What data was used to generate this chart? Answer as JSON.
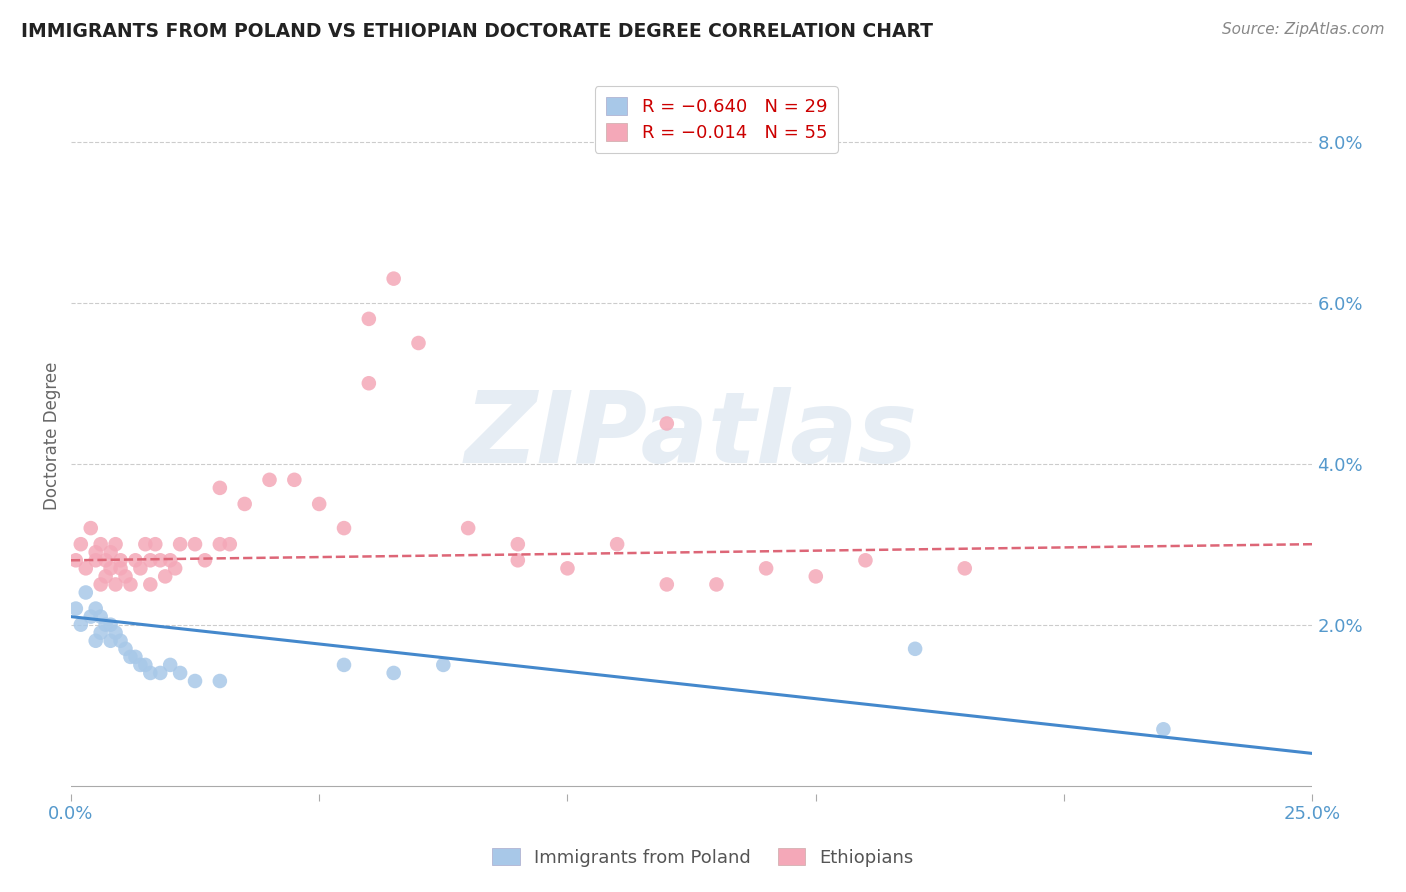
{
  "title": "IMMIGRANTS FROM POLAND VS ETHIOPIAN DOCTORATE DEGREE CORRELATION CHART",
  "source": "Source: ZipAtlas.com",
  "ylabel": "Doctorate Degree",
  "xlim": [
    0.0,
    0.25
  ],
  "ylim": [
    -0.001,
    0.088
  ],
  "xticks": [
    0.0,
    0.05,
    0.1,
    0.15,
    0.2,
    0.25
  ],
  "xtick_labels": [
    "0.0%",
    "",
    "",
    "",
    "",
    "25.0%"
  ],
  "yticks_right": [
    0.02,
    0.04,
    0.06,
    0.08
  ],
  "ytick_right_labels": [
    "2.0%",
    "4.0%",
    "6.0%",
    "8.0%"
  ],
  "legend_r_entries": [
    {
      "label": "R = −0.640   N = 29",
      "color": "#a8c8e8"
    },
    {
      "label": "R = −0.014   N = 55",
      "color": "#f4a8b8"
    }
  ],
  "legend_series": [
    "Immigrants from Poland",
    "Ethiopians"
  ],
  "watermark": "ZIPatlas",
  "background_color": "#ffffff",
  "grid_color": "#cccccc",
  "blue_color": "#a8c8e8",
  "pink_color": "#f4a8b8",
  "blue_line_color": "#4488cc",
  "pink_line_color": "#dd6677",
  "title_color": "#222222",
  "axis_label_color": "#5599cc",
  "poland_x": [
    0.001,
    0.002,
    0.003,
    0.004,
    0.005,
    0.005,
    0.006,
    0.006,
    0.007,
    0.008,
    0.008,
    0.009,
    0.01,
    0.011,
    0.012,
    0.013,
    0.014,
    0.015,
    0.016,
    0.018,
    0.02,
    0.022,
    0.025,
    0.03,
    0.055,
    0.065,
    0.075,
    0.17,
    0.22
  ],
  "poland_y": [
    0.022,
    0.02,
    0.024,
    0.021,
    0.018,
    0.022,
    0.019,
    0.021,
    0.02,
    0.018,
    0.02,
    0.019,
    0.018,
    0.017,
    0.016,
    0.016,
    0.015,
    0.015,
    0.014,
    0.014,
    0.015,
    0.014,
    0.013,
    0.013,
    0.015,
    0.014,
    0.015,
    0.017,
    0.007
  ],
  "ethiopia_x": [
    0.001,
    0.002,
    0.003,
    0.004,
    0.005,
    0.005,
    0.006,
    0.006,
    0.007,
    0.007,
    0.008,
    0.008,
    0.009,
    0.009,
    0.01,
    0.01,
    0.011,
    0.012,
    0.013,
    0.014,
    0.015,
    0.016,
    0.016,
    0.017,
    0.018,
    0.019,
    0.02,
    0.021,
    0.022,
    0.025,
    0.027,
    0.03,
    0.03,
    0.032,
    0.035,
    0.04,
    0.045,
    0.05,
    0.055,
    0.06,
    0.065,
    0.07,
    0.08,
    0.09,
    0.1,
    0.11,
    0.12,
    0.13,
    0.14,
    0.15,
    0.16,
    0.18,
    0.12,
    0.06,
    0.09
  ],
  "ethiopia_y": [
    0.028,
    0.03,
    0.027,
    0.032,
    0.029,
    0.028,
    0.025,
    0.03,
    0.026,
    0.028,
    0.027,
    0.029,
    0.025,
    0.03,
    0.027,
    0.028,
    0.026,
    0.025,
    0.028,
    0.027,
    0.03,
    0.028,
    0.025,
    0.03,
    0.028,
    0.026,
    0.028,
    0.027,
    0.03,
    0.03,
    0.028,
    0.03,
    0.037,
    0.03,
    0.035,
    0.038,
    0.038,
    0.035,
    0.032,
    0.058,
    0.063,
    0.055,
    0.032,
    0.028,
    0.027,
    0.03,
    0.025,
    0.025,
    0.027,
    0.026,
    0.028,
    0.027,
    0.045,
    0.05,
    0.03
  ],
  "poland_trend_x": [
    0.0,
    0.25
  ],
  "poland_trend_y": [
    0.021,
    0.004
  ],
  "ethiopia_trend_x": [
    0.0,
    0.25
  ],
  "ethiopia_trend_y": [
    0.028,
    0.03
  ]
}
